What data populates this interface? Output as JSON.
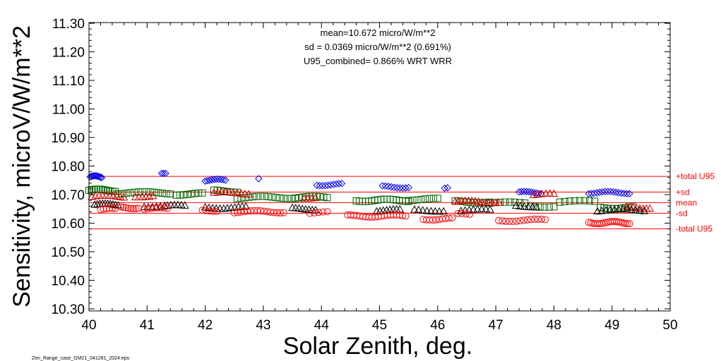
{
  "chart_data": {
    "type": "scatter",
    "title": "",
    "xlabel": "Solar Zenith, deg.",
    "ylabel": "Sensitivity, microV/W/m**2",
    "xlim": [
      40,
      50
    ],
    "ylim": [
      10.3,
      11.32
    ],
    "x_ticks": [
      40,
      41,
      42,
      43,
      44,
      45,
      46,
      47,
      48,
      49,
      50
    ],
    "y_ticks": [
      10.3,
      10.4,
      10.5,
      10.6,
      10.7,
      10.8,
      10.9,
      11.0,
      11.1,
      11.2,
      11.3
    ],
    "x_tick_labels": [
      "40",
      "41",
      "42",
      "43",
      "44",
      "45",
      "46",
      "47",
      "48",
      "49",
      "50"
    ],
    "y_tick_labels": [
      "10.30",
      "10.40",
      "10.50",
      "10.60",
      "10.70",
      "10.80",
      "10.90",
      "11.00",
      "11.10",
      "11.20",
      "11.30"
    ],
    "grid": false,
    "legend": "none",
    "annotations": [
      "mean=10.672 micro/W/m**2",
      "sd = 0.0369 micro/W/m**2 (0.691%)",
      "U95_combined= 0.866% WRT WRR"
    ],
    "reference_lines": [
      {
        "label": "+total U95",
        "y": 10.764
      },
      {
        "label": "+sd",
        "y": 10.709
      },
      {
        "label": "mean",
        "y": 10.672
      },
      {
        "label": "-sd",
        "y": 10.635
      },
      {
        "label": "-total U95",
        "y": 10.58
      }
    ],
    "footer": "Zen_Range_case_GM21_041281_2024.eps",
    "series": [
      {
        "marker": "diamond",
        "color": "#0000ee",
        "clusters": [
          {
            "x0": 40.02,
            "x1": 40.22,
            "y": 10.762,
            "n": 10
          },
          {
            "x0": 41.25,
            "x1": 41.32,
            "y": 10.778,
            "n": 3
          },
          {
            "x0": 42.0,
            "x1": 42.35,
            "y": 10.75,
            "n": 10
          },
          {
            "x0": 42.92,
            "x1": 42.92,
            "y": 10.757,
            "n": 1
          },
          {
            "x0": 43.92,
            "x1": 44.35,
            "y": 10.735,
            "n": 10
          },
          {
            "x0": 45.05,
            "x1": 45.5,
            "y": 10.727,
            "n": 10
          },
          {
            "x0": 46.12,
            "x1": 46.17,
            "y": 10.723,
            "n": 2
          },
          {
            "x0": 47.4,
            "x1": 47.78,
            "y": 10.707,
            "n": 10
          },
          {
            "x0": 48.6,
            "x1": 49.3,
            "y": 10.707,
            "n": 16
          }
        ]
      },
      {
        "marker": "square",
        "color": "#006600",
        "clusters": [
          {
            "x0": 40.0,
            "x1": 40.45,
            "y": 10.715,
            "n": 12
          },
          {
            "x0": 40.5,
            "x1": 41.4,
            "y": 10.706,
            "n": 14
          },
          {
            "x0": 41.5,
            "x1": 41.95,
            "y": 10.702,
            "n": 8
          },
          {
            "x0": 42.15,
            "x1": 42.55,
            "y": 10.712,
            "n": 8
          },
          {
            "x0": 42.55,
            "x1": 43.55,
            "y": 10.69,
            "n": 16
          },
          {
            "x0": 43.55,
            "x1": 44.1,
            "y": 10.69,
            "n": 10
          },
          {
            "x0": 44.6,
            "x1": 45.5,
            "y": 10.68,
            "n": 18
          },
          {
            "x0": 45.5,
            "x1": 46.0,
            "y": 10.683,
            "n": 8
          },
          {
            "x0": 46.3,
            "x1": 46.9,
            "y": 10.675,
            "n": 10
          },
          {
            "x0": 46.9,
            "x1": 47.5,
            "y": 10.67,
            "n": 8
          },
          {
            "x0": 47.6,
            "x1": 48.0,
            "y": 10.66,
            "n": 6
          },
          {
            "x0": 48.1,
            "x1": 48.7,
            "y": 10.675,
            "n": 8
          },
          {
            "x0": 48.8,
            "x1": 49.35,
            "y": 10.655,
            "n": 10
          }
        ]
      },
      {
        "marker": "triangle",
        "color": "#cc0000",
        "clusters": [
          {
            "x0": 40.05,
            "x1": 40.6,
            "y": 10.693,
            "n": 10
          },
          {
            "x0": 40.8,
            "x1": 41.1,
            "y": 10.695,
            "n": 6
          },
          {
            "x0": 42.15,
            "x1": 42.75,
            "y": 10.705,
            "n": 10
          },
          {
            "x0": 43.7,
            "x1": 43.9,
            "y": 10.69,
            "n": 4
          },
          {
            "x0": 46.3,
            "x1": 47.05,
            "y": 10.675,
            "n": 14
          },
          {
            "x0": 47.65,
            "x1": 48.0,
            "y": 10.7,
            "n": 6
          },
          {
            "x0": 49.25,
            "x1": 49.65,
            "y": 10.655,
            "n": 8
          }
        ]
      },
      {
        "marker": "triangle",
        "color": "#000000",
        "clusters": [
          {
            "x0": 40.1,
            "x1": 40.5,
            "y": 10.665,
            "n": 10
          },
          {
            "x0": 40.95,
            "x1": 41.3,
            "y": 10.66,
            "n": 6
          },
          {
            "x0": 41.35,
            "x1": 41.65,
            "y": 10.66,
            "n": 6
          },
          {
            "x0": 42.0,
            "x1": 42.7,
            "y": 10.655,
            "n": 12
          },
          {
            "x0": 43.5,
            "x1": 43.9,
            "y": 10.65,
            "n": 8
          },
          {
            "x0": 44.95,
            "x1": 45.35,
            "y": 10.645,
            "n": 8
          },
          {
            "x0": 45.6,
            "x1": 46.1,
            "y": 10.645,
            "n": 8
          },
          {
            "x0": 46.4,
            "x1": 46.9,
            "y": 10.645,
            "n": 8
          },
          {
            "x0": 47.35,
            "x1": 47.7,
            "y": 10.66,
            "n": 6
          },
          {
            "x0": 48.75,
            "x1": 49.55,
            "y": 10.645,
            "n": 12
          }
        ]
      },
      {
        "marker": "circle",
        "color": "#ff0000",
        "clusters": [
          {
            "x0": 40.2,
            "x1": 40.45,
            "y": 10.648,
            "n": 6
          },
          {
            "x0": 40.55,
            "x1": 40.85,
            "y": 10.655,
            "n": 8
          },
          {
            "x0": 40.95,
            "x1": 41.35,
            "y": 10.65,
            "n": 8
          },
          {
            "x0": 41.95,
            "x1": 42.2,
            "y": 10.645,
            "n": 5
          },
          {
            "x0": 42.5,
            "x1": 43.35,
            "y": 10.64,
            "n": 16
          },
          {
            "x0": 43.8,
            "x1": 44.1,
            "y": 10.637,
            "n": 5
          },
          {
            "x0": 44.45,
            "x1": 45.45,
            "y": 10.625,
            "n": 20
          },
          {
            "x0": 45.75,
            "x1": 46.25,
            "y": 10.615,
            "n": 10
          },
          {
            "x0": 46.35,
            "x1": 46.55,
            "y": 10.63,
            "n": 4
          },
          {
            "x0": 47.05,
            "x1": 47.85,
            "y": 10.61,
            "n": 14
          },
          {
            "x0": 48.6,
            "x1": 49.3,
            "y": 10.602,
            "n": 20
          }
        ]
      }
    ]
  }
}
